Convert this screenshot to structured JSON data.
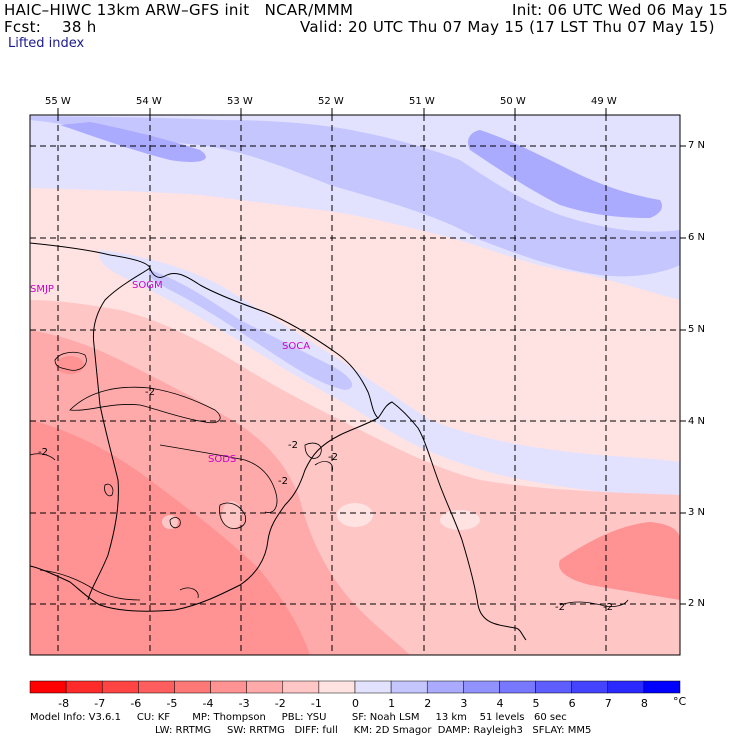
{
  "header": {
    "model_title": "HAIC–HIWC 13km ARW–GFS init   NCAR/MMM",
    "init_line": "Init: 06 UTC Wed 06 May 15",
    "fcst_label": "Fcst:",
    "fcst_value": "38 h",
    "valid_line": "Valid: 20 UTC Thu 07 May 15 (17 LST Thu 07 May 15)",
    "field_name": "Lifted index"
  },
  "map": {
    "lon_labels": [
      "55 W",
      "54 W",
      "53 W",
      "52 W",
      "51 W",
      "50 W",
      "49 W"
    ],
    "lat_labels": [
      "7 N",
      "6 N",
      "5 N",
      "4 N",
      "3 N",
      "2 N"
    ],
    "stations": [
      "SMJP",
      "SOGM",
      "SOCA",
      "SODS"
    ],
    "contour_labels": [
      "-2",
      "-2",
      "-2",
      "-2",
      "-2",
      "-2",
      "-2"
    ]
  },
  "colorbar": {
    "unit": "°C",
    "tick_labels": [
      "-8",
      "-7",
      "-6",
      "-5",
      "-4",
      "-3",
      "-2",
      "-1",
      "0",
      "1",
      "2",
      "3",
      "4",
      "5",
      "6",
      "7",
      "8"
    ],
    "colors": [
      "#ff0000",
      "#ff2a2a",
      "#ff4444",
      "#ff5e5e",
      "#ff7878",
      "#ff9292",
      "#ffaaaa",
      "#ffc6c6",
      "#ffe2e2",
      "#e2e2ff",
      "#c6c6ff",
      "#aaaaff",
      "#9292ff",
      "#7878ff",
      "#5e5eff",
      "#4444ff",
      "#2a2aff",
      "#0000ff"
    ]
  },
  "footer": {
    "line1": "Model Info: V3.6.1     CU: KF       MP: Thompson     PBL: YSU        SF: Noah LSM     13 km    51 levels   60 sec",
    "line2": "LW: RRTMG     SW: RRTMG   DIFF: full     KM: 2D Smagor  DAMP: Rayleigh3   SFLAY: MM5"
  }
}
